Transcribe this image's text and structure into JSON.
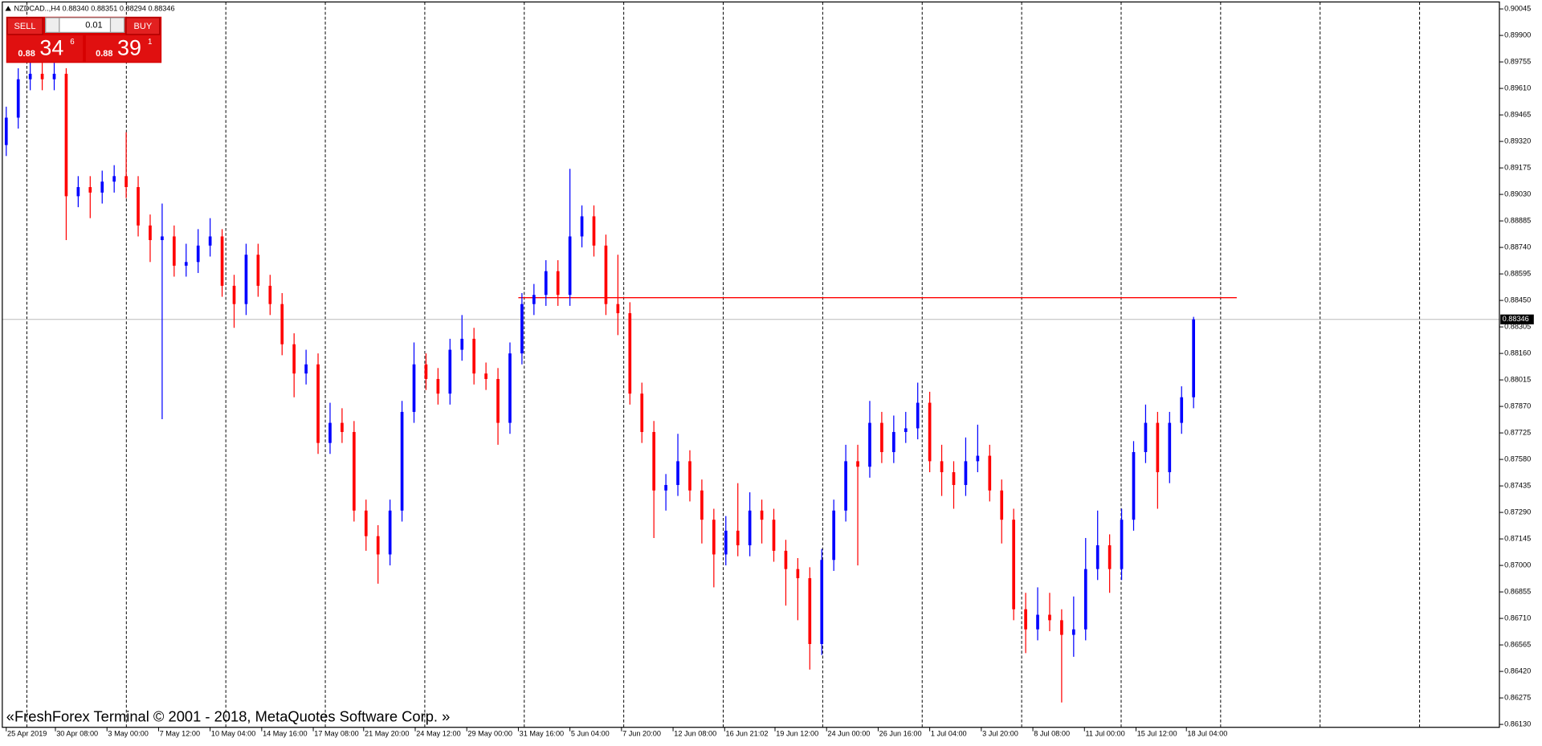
{
  "chart_data": {
    "type": "candlestick",
    "title": "NZDCAD..,H4  0.88340 0.88351 0.88294 0.88346",
    "up_color": "#0000ff",
    "down_color": "#ff0000",
    "open": [
      0.893,
      0.8945,
      0.8966,
      0.8969,
      0.8966,
      0.8969,
      0.8902,
      0.8907,
      0.8904,
      0.891,
      0.8913,
      0.8907,
      0.8886,
      0.8878,
      0.888,
      0.8864,
      0.8866,
      0.8875,
      0.888,
      0.8853,
      0.8843,
      0.887,
      0.8853,
      0.8843,
      0.8821,
      0.8805,
      0.881,
      0.8767,
      0.8778,
      0.8773,
      0.873,
      0.8716,
      0.8706,
      0.873,
      0.8784,
      0.881,
      0.8802,
      0.8794,
      0.8818,
      0.8824,
      0.8805,
      0.8802,
      0.8778,
      0.8816,
      0.8843,
      0.8848,
      0.8861,
      0.8848,
      0.888,
      0.8891,
      0.8875,
      0.8843,
      0.8838,
      0.8794,
      0.8773,
      0.8741,
      0.8744,
      0.8757,
      0.8741,
      0.8725,
      0.8706,
      0.8719,
      0.8711,
      0.873,
      0.8725,
      0.8708,
      0.8698,
      0.8693,
      0.8657,
      0.8703,
      0.873,
      0.8757,
      0.8754,
      0.8778,
      0.8762,
      0.8773,
      0.8775,
      0.8789,
      0.8757,
      0.8751,
      0.8744,
      0.8757,
      0.876,
      0.8741,
      0.8725,
      0.8676,
      0.8665,
      0.8673,
      0.867,
      0.8662,
      0.8665,
      0.8698,
      0.8711,
      0.8698,
      0.8725,
      0.8762,
      0.8778,
      0.8751,
      0.8778,
      0.8792
    ],
    "high": [
      0.8951,
      0.8972,
      0.8978,
      0.8975,
      0.8975,
      0.8972,
      0.8913,
      0.8913,
      0.8916,
      0.8919,
      0.8937,
      0.8913,
      0.8892,
      0.8898,
      0.8886,
      0.8876,
      0.8884,
      0.889,
      0.8884,
      0.8859,
      0.8876,
      0.8876,
      0.8859,
      0.8849,
      0.8827,
      0.8818,
      0.8816,
      0.8789,
      0.8786,
      0.8779,
      0.8736,
      0.8722,
      0.8736,
      0.879,
      0.8822,
      0.8816,
      0.8808,
      0.8824,
      0.8837,
      0.883,
      0.8811,
      0.8808,
      0.8822,
      0.8849,
      0.8854,
      0.8867,
      0.8867,
      0.8917,
      0.8897,
      0.8897,
      0.8881,
      0.887,
      0.8844,
      0.88,
      0.8779,
      0.875,
      0.8772,
      0.8763,
      0.8747,
      0.8731,
      0.8727,
      0.8745,
      0.874,
      0.8736,
      0.8731,
      0.8714,
      0.8704,
      0.8699,
      0.8709,
      0.8736,
      0.8766,
      0.8766,
      0.879,
      0.8784,
      0.8782,
      0.8784,
      0.88,
      0.8795,
      0.8766,
      0.8757,
      0.877,
      0.8777,
      0.8766,
      0.8747,
      0.8731,
      0.8685,
      0.8688,
      0.8685,
      0.8676,
      0.8683,
      0.8715,
      0.873,
      0.8717,
      0.8731,
      0.8768,
      0.8788,
      0.8784,
      0.8784,
      0.8798,
      0.8836
    ],
    "low": [
      0.8924,
      0.8939,
      0.896,
      0.896,
      0.896,
      0.8878,
      0.8896,
      0.889,
      0.8898,
      0.8904,
      0.8901,
      0.888,
      0.8866,
      0.878,
      0.8858,
      0.8858,
      0.886,
      0.8869,
      0.8847,
      0.883,
      0.8837,
      0.8847,
      0.8837,
      0.8815,
      0.8792,
      0.8799,
      0.8761,
      0.8761,
      0.8767,
      0.8724,
      0.8708,
      0.869,
      0.87,
      0.8724,
      0.8778,
      0.8796,
      0.8788,
      0.8788,
      0.8812,
      0.8799,
      0.8796,
      0.8766,
      0.8772,
      0.881,
      0.8837,
      0.8842,
      0.8842,
      0.8842,
      0.8874,
      0.8869,
      0.8837,
      0.8826,
      0.8788,
      0.8767,
      0.8715,
      0.873,
      0.8738,
      0.8735,
      0.8712,
      0.8688,
      0.87,
      0.8705,
      0.8705,
      0.8712,
      0.8702,
      0.8678,
      0.867,
      0.8643,
      0.8651,
      0.8697,
      0.8724,
      0.87,
      0.8748,
      0.8756,
      0.8756,
      0.8767,
      0.8769,
      0.8751,
      0.8738,
      0.8731,
      0.8738,
      0.8751,
      0.8735,
      0.8712,
      0.867,
      0.8652,
      0.8659,
      0.8664,
      0.8625,
      0.865,
      0.8659,
      0.8692,
      0.8685,
      0.8692,
      0.8719,
      0.8756,
      0.8731,
      0.8745,
      0.8772,
      0.8786
    ],
    "close": [
      0.8945,
      0.8966,
      0.8969,
      0.8966,
      0.8969,
      0.8902,
      0.8907,
      0.8904,
      0.891,
      0.8913,
      0.8907,
      0.8886,
      0.8878,
      0.888,
      0.8864,
      0.8866,
      0.8875,
      0.888,
      0.8853,
      0.8843,
      0.887,
      0.8853,
      0.8843,
      0.8821,
      0.8805,
      0.881,
      0.8767,
      0.8778,
      0.8773,
      0.873,
      0.8716,
      0.8706,
      0.873,
      0.8784,
      0.881,
      0.8802,
      0.8794,
      0.8818,
      0.8824,
      0.8805,
      0.8802,
      0.8778,
      0.8816,
      0.8843,
      0.8848,
      0.8861,
      0.8848,
      0.888,
      0.8891,
      0.8875,
      0.8843,
      0.8838,
      0.8794,
      0.8773,
      0.8741,
      0.8744,
      0.8757,
      0.8741,
      0.8725,
      0.8706,
      0.8719,
      0.8711,
      0.873,
      0.8725,
      0.8708,
      0.8698,
      0.8693,
      0.8657,
      0.8703,
      0.873,
      0.8757,
      0.8754,
      0.8778,
      0.8762,
      0.8773,
      0.8775,
      0.8789,
      0.8757,
      0.8751,
      0.8744,
      0.8757,
      0.876,
      0.8741,
      0.8725,
      0.8676,
      0.8665,
      0.8673,
      0.867,
      0.8662,
      0.8665,
      0.8698,
      0.8711,
      0.8698,
      0.8725,
      0.8762,
      0.8778,
      0.8751,
      0.8778,
      0.8792,
      0.88346
    ],
    "xlim": [
      -0.33,
      124.5
    ],
    "xticks": [
      {
        "value": 0,
        "label": "25 Apr 2019"
      },
      {
        "value": 4.1,
        "label": "30 Apr 08:00"
      },
      {
        "value": 8.4,
        "label": "3 May 00:00"
      },
      {
        "value": 12.7,
        "label": "7 May 12:00"
      },
      {
        "value": 17.0,
        "label": "10 May 04:00"
      },
      {
        "value": 21.3,
        "label": "14 May 16:00"
      },
      {
        "value": 25.6,
        "label": "17 May 08:00"
      },
      {
        "value": 29.8,
        "label": "21 May 20:00"
      },
      {
        "value": 34.1,
        "label": "24 May 12:00"
      },
      {
        "value": 38.4,
        "label": "29 May 00:00"
      },
      {
        "value": 42.7,
        "label": "31 May 16:00"
      },
      {
        "value": 47.0,
        "label": "5 Jun 04:00"
      },
      {
        "value": 51.3,
        "label": "7 Jun 20:00"
      },
      {
        "value": 55.6,
        "label": "12 Jun 08:00"
      },
      {
        "value": 59.9,
        "label": "16 Jun 21:02"
      },
      {
        "value": 64.1,
        "label": "19 Jun 12:00"
      },
      {
        "value": 68.4,
        "label": "24 Jun 00:00"
      },
      {
        "value": 72.7,
        "label": "26 Jun 16:00"
      },
      {
        "value": 77.0,
        "label": "1 Jul 04:00"
      },
      {
        "value": 81.3,
        "label": "3 Jul 20:00"
      },
      {
        "value": 85.6,
        "label": "8 Jul 08:00"
      },
      {
        "value": 89.9,
        "label": "11 Jul 00:00"
      },
      {
        "value": 94.2,
        "label": "15 Jul 12:00"
      },
      {
        "value": 98.4,
        "label": "18 Jul 04:00"
      }
    ],
    "ylim": [
      0.86114,
      0.90083
    ],
    "yticks": [
      0.90045,
      {
        "value": 0.899,
        "label": "0.89900"
      },
      0.89755,
      {
        "value": 0.8961,
        "label": "0.89610"
      },
      0.89465,
      {
        "value": 0.8932,
        "label": "0.89320"
      },
      0.89175,
      {
        "value": 0.8903,
        "label": "0.89030"
      },
      0.88885,
      {
        "value": 0.8874,
        "label": "0.88740"
      },
      0.88595,
      {
        "value": 0.8845,
        "label": "0.88450"
      },
      0.88305,
      {
        "value": 0.8816,
        "label": "0.88160"
      },
      0.88015,
      {
        "value": 0.8787,
        "label": "0.87870"
      },
      0.87725,
      {
        "value": 0.8758,
        "label": "0.87580"
      },
      0.87435,
      {
        "value": 0.8729,
        "label": "0.87290"
      },
      0.87145,
      {
        "value": 0.87,
        "label": "0.87000"
      },
      0.86855,
      {
        "value": 0.8671,
        "label": "0.86710"
      },
      0.86565,
      {
        "value": 0.8642,
        "label": "0.86420"
      },
      0.86275,
      {
        "value": 0.8613,
        "label": "0.86130"
      }
    ],
    "current_price": 0.88346,
    "level": {
      "value": 0.88465,
      "color": "#ff0000",
      "from": 42.7,
      "to": 102.6
    }
  },
  "trade_panel": {
    "sell": "SELL",
    "lot": "0.01",
    "buy": "BUY",
    "sell_price": {
      "prefix": "0.88",
      "main": "34",
      "point": "6"
    },
    "buy_price": {
      "prefix": "0.88",
      "main": "39",
      "point": "1"
    }
  },
  "watermark": "«FreshForex Terminal © 2001 - 2018, MetaQuotes Software Corp. »"
}
